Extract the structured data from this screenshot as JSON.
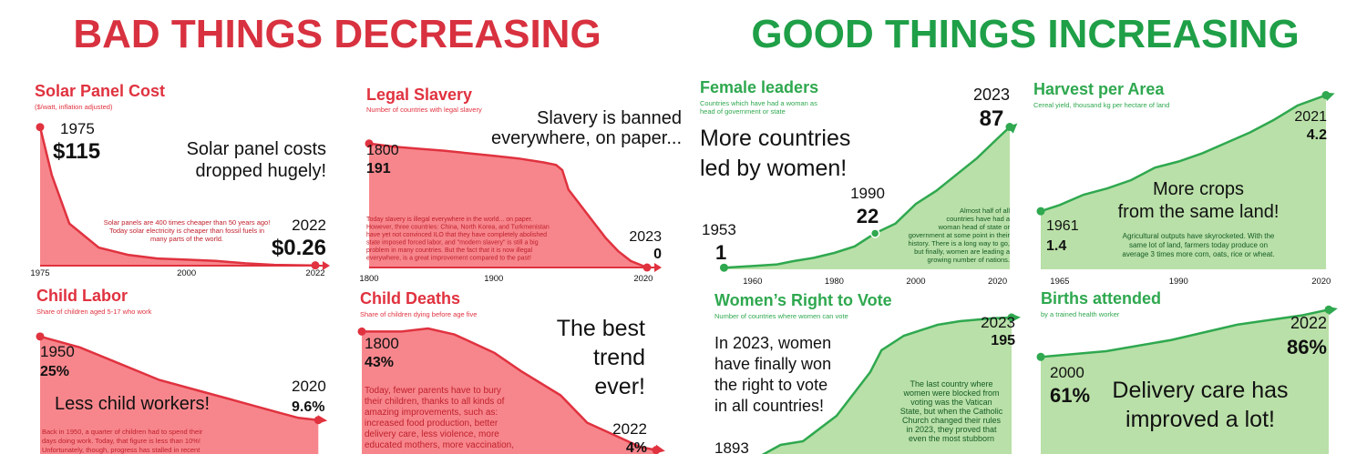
{
  "headers": {
    "bad": "BAD THINGS DECREASING",
    "good": "GOOD THINGS INCREASING"
  },
  "chart_data": [
    {
      "type": "area",
      "title": "Solar Panel Cost",
      "subtitle": [
        "($/watt, inflation adjusted)"
      ],
      "color": "#e0323f",
      "fill": "#f7868c",
      "x": [
        1975,
        1977,
        1980,
        1985,
        1990,
        1995,
        2000,
        2005,
        2010,
        2015,
        2020,
        2022
      ],
      "values": [
        115,
        75,
        35,
        15,
        9,
        6,
        5,
        4,
        2,
        0.7,
        0.3,
        0.26
      ],
      "value_labels": [
        "$115",
        null,
        null,
        null,
        null,
        null,
        null,
        null,
        null,
        null,
        null,
        "$0.26"
      ],
      "xlim": [
        1975,
        2022
      ],
      "ylim": [
        0,
        145
      ],
      "xticks": [
        1975,
        2000,
        2022
      ],
      "remark": [
        "Solar panel costs",
        "dropped hugely!"
      ],
      "note": [
        "Solar panels are 400 times cheaper than 50 years ago!",
        "Today solar electricity is cheaper than fossil fuels in",
        "many parts of the world."
      ]
    },
    {
      "type": "area",
      "title": "Legal Slavery",
      "subtitle": [
        "Number of countries with legal slavery"
      ],
      "color": "#e0323f",
      "fill": "#f7868c",
      "x": [
        1800,
        1820,
        1840,
        1860,
        1880,
        1900,
        1920,
        1940,
        1950,
        1955,
        1960,
        1970,
        1980,
        1990,
        2000,
        2010,
        2023
      ],
      "values": [
        191,
        186,
        183,
        180,
        176,
        172,
        168,
        162,
        158,
        150,
        120,
        95,
        70,
        45,
        25,
        10,
        0
      ],
      "value_labels": [
        "191",
        null,
        null,
        null,
        null,
        null,
        null,
        null,
        null,
        null,
        null,
        null,
        null,
        null,
        null,
        null,
        "0"
      ],
      "xlim": [
        1800,
        2023
      ],
      "ylim": [
        0,
        272
      ],
      "xticks": [
        1800,
        1900,
        2020
      ],
      "remark": [
        "Slavery is banned",
        "everywhere, on paper..."
      ],
      "note": [
        "Today slavery is illegal everywhere in the world... on paper.",
        "However, three countries: China, North Korea, and Turkmenistan",
        "have yet not convinced ILO that they have completely abolished",
        "state imposed forced labor, and \"modern slavery\" is still a big",
        "problem in many countries. But the fact that it is now illegal",
        "everywhere, is a great improvement compared to the past!"
      ]
    },
    {
      "type": "area",
      "title": "Female leaders",
      "subtitle": [
        "Countries which have had a woman as",
        "head of government or state"
      ],
      "color": "#2fa84f",
      "fill": "#b9e0a8",
      "x": [
        1953,
        1960,
        1966,
        1970,
        1975,
        1980,
        1985,
        1990,
        1995,
        2000,
        2005,
        2010,
        2015,
        2020,
        2023
      ],
      "values": [
        1,
        2,
        3,
        5,
        7,
        10,
        14,
        22,
        28,
        40,
        48,
        58,
        68,
        80,
        87
      ],
      "value_labels": [
        "1",
        null,
        null,
        null,
        null,
        null,
        null,
        "22",
        null,
        null,
        null,
        null,
        null,
        null,
        "87"
      ],
      "xlim": [
        1952,
        2023
      ],
      "ylim": [
        0,
        109
      ],
      "xticks": [
        1960,
        1980,
        2000,
        2020
      ],
      "remark": [
        "More countries",
        "led by women!"
      ],
      "note": [
        "Almost half of all",
        "countries have had a",
        "woman head of state or",
        "government at some point in their",
        "history. There is a long way to go,",
        "but finally, women are leading a",
        "growing number of nations."
      ]
    },
    {
      "type": "area",
      "title": "Harvest per Area",
      "subtitle": [
        "Cereal yield, thousand kg per hectare of land"
      ],
      "color": "#2fa84f",
      "fill": "#b9e0a8",
      "x": [
        1961,
        1965,
        1970,
        1975,
        1980,
        1985,
        1990,
        1995,
        2000,
        2005,
        2010,
        2015,
        2021
      ],
      "values": [
        1.4,
        1.55,
        1.8,
        1.95,
        2.15,
        2.45,
        2.6,
        2.8,
        3.05,
        3.3,
        3.6,
        3.95,
        4.2
      ],
      "value_labels": [
        "1.4",
        null,
        null,
        null,
        null,
        null,
        null,
        null,
        null,
        null,
        null,
        null,
        "4.2"
      ],
      "xlim": [
        1961,
        2021
      ],
      "ylim": [
        0,
        4.3
      ],
      "xticks": [
        1965,
        1990,
        2020
      ],
      "remark": [
        "More crops",
        "from the same land!"
      ],
      "note": [
        "Agricultural outputs have skyrocketed. With the",
        "same lot of land, farmers today produce on",
        "average 3 times more corn, oats, rice or wheat."
      ]
    },
    {
      "type": "area",
      "title": "Child Labor",
      "subtitle": [
        "Share of children aged 5-17 who work"
      ],
      "color": "#e0323f",
      "fill": "#f7868c",
      "x": [
        1950,
        1960,
        1970,
        1980,
        1990,
        2000,
        2010,
        2015,
        2020
      ],
      "values": [
        25,
        23,
        20,
        17,
        15,
        13,
        11,
        10,
        9.6
      ],
      "value_labels": [
        "25%",
        null,
        null,
        null,
        null,
        null,
        null,
        null,
        "9.6%"
      ],
      "xlim": [
        1950,
        2022
      ],
      "ylim": [
        0,
        30
      ],
      "remark": [
        "Less child workers!"
      ],
      "note": [
        "Back in 1950, a quarter of children had to spend their",
        "days doing work. Today, that figure is less than 10%!",
        "Unfortunately, though, progress has stalled in recent"
      ]
    },
    {
      "type": "area",
      "title": "Child Deaths",
      "subtitle": [
        "Share of children dying before age five"
      ],
      "color": "#e0323f",
      "fill": "#f7868c",
      "x": [
        1800,
        1830,
        1850,
        1870,
        1900,
        1920,
        1950,
        1970,
        1990,
        2010,
        2022
      ],
      "values": [
        43,
        43,
        44,
        42,
        36,
        30,
        22,
        13,
        9,
        5,
        4
      ],
      "value_labels": [
        "43%",
        null,
        null,
        null,
        null,
        null,
        null,
        null,
        null,
        null,
        "4%"
      ],
      "xlim": [
        1800,
        2022
      ],
      "ylim": [
        0,
        50
      ],
      "remark": [
        "The best",
        "trend",
        "ever!"
      ],
      "note": [
        "Today, fewer parents have to bury",
        "their children, thanks to all kinds of",
        "amazing improvements, such as:",
        "increased food production, better",
        "delivery care, less violence, more",
        "educated mothers, more vaccination,"
      ]
    },
    {
      "type": "area",
      "title": "Women’s Right to Vote",
      "subtitle": [
        "Number of countries where women can vote"
      ],
      "color": "#2fa84f",
      "fill": "#b9e0a8",
      "x": [
        1893,
        1910,
        1920,
        1930,
        1945,
        1955,
        1960,
        1965,
        1975,
        1990,
        2000,
        2015,
        2023
      ],
      "values": [
        1,
        3,
        20,
        25,
        60,
        100,
        120,
        150,
        170,
        185,
        190,
        194,
        195
      ],
      "value_labels": [
        null,
        null,
        null,
        null,
        null,
        null,
        null,
        null,
        null,
        null,
        null,
        null,
        "195"
      ],
      "xlim": [
        1893,
        2023
      ],
      "ylim": [
        0,
        200
      ],
      "remark": [
        "In 2023, women",
        "have finally won",
        "the right to vote",
        "in all countries!"
      ],
      "note": [
        "The last country where",
        "women were blocked from",
        "voting was the Vatican",
        "State, but when the Catholic",
        "Church changed their rules",
        "in 2023, they proved that",
        "even the most stubborn"
      ]
    },
    {
      "type": "area",
      "title": "Births attended",
      "subtitle": [
        "by a trained health worker"
      ],
      "color": "#2fa84f",
      "fill": "#b9e0a8",
      "x": [
        2000,
        2005,
        2010,
        2015,
        2020,
        2022
      ],
      "values": [
        61,
        64,
        70,
        78,
        83,
        86
      ],
      "value_labels": [
        "61%",
        null,
        null,
        null,
        null,
        "86%"
      ],
      "xlim": [
        2000,
        2022
      ],
      "ylim": [
        0,
        90
      ],
      "remark": [
        "Delivery care has",
        "improved a lot!"
      ],
      "note": []
    }
  ]
}
